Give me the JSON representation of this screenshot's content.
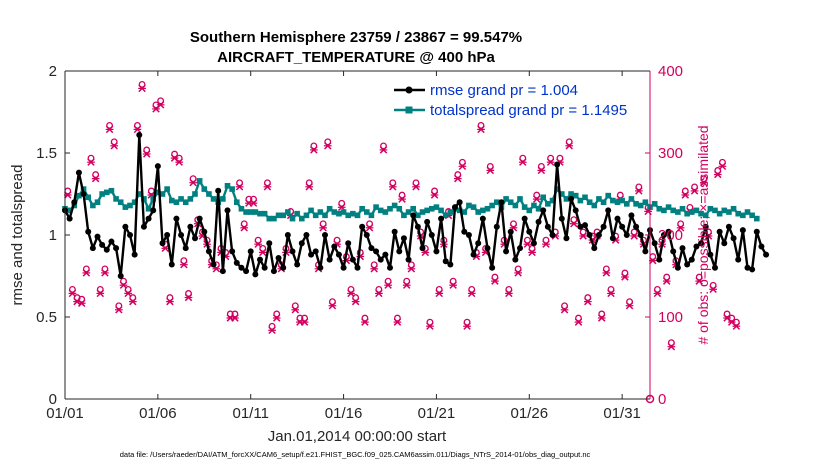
{
  "chart_data": {
    "type": "line",
    "title_line1": "Southern Hemisphere 23759 / 23867 = 99.547%",
    "title_line2": "AIRCRAFT_TEMPERATURE @ 400 hPa",
    "xlabel": "Jan.01,2014 00:00:00 start",
    "ylabel_left": "rmse and totalspread",
    "ylabel_right": "# of obs: o=possible; ×=assimilated",
    "x_ticks": [
      {
        "day": 1,
        "label": "01/01"
      },
      {
        "day": 6,
        "label": "01/06"
      },
      {
        "day": 11,
        "label": "01/11"
      },
      {
        "day": 16,
        "label": "01/16"
      },
      {
        "day": 21,
        "label": "01/21"
      },
      {
        "day": 26,
        "label": "01/26"
      },
      {
        "day": 31,
        "label": "01/31"
      }
    ],
    "xlim": [
      1,
      32.5
    ],
    "ylim_left": [
      0,
      2
    ],
    "yticks_left": [
      "0",
      "0.5",
      "1",
      "1.5",
      "2"
    ],
    "ylim_right": [
      0,
      400
    ],
    "yticks_right": [
      "0",
      "100",
      "200",
      "300",
      "400"
    ],
    "x_step_days": 0.25,
    "x_start_day": 1.0,
    "series": [
      {
        "name": "rmse",
        "legend": "rmse grand pr = 1.004",
        "color": "#000000",
        "marker": "filled-circle",
        "values": [
          1.15,
          1.1,
          1.2,
          1.38,
          1.25,
          1.02,
          0.92,
          0.99,
          0.94,
          0.91,
          0.96,
          0.92,
          0.75,
          1.05,
          1.0,
          0.88,
          1.61,
          1.05,
          1.1,
          1.15,
          1.42,
          0.95,
          1.0,
          0.82,
          1.1,
          1.0,
          0.92,
          1.05,
          0.98,
          1.1,
          1.02,
          0.9,
          0.82,
          1.27,
          0.78,
          1.15,
          0.9,
          0.83,
          0.8,
          0.78,
          0.9,
          0.76,
          0.85,
          0.8,
          0.95,
          0.78,
          0.86,
          0.8,
          1.0,
          0.9,
          0.82,
          0.95,
          1.0,
          0.88,
          0.9,
          0.8,
          1.0,
          0.85,
          0.93,
          0.88,
          0.8,
          0.95,
          0.85,
          0.8,
          1.05,
          1.0,
          0.92,
          0.9,
          0.85,
          0.88,
          0.8,
          1.02,
          0.9,
          0.98,
          0.85,
          1.12,
          1.05,
          0.92,
          1.08,
          1.0,
          0.9,
          1.1,
          0.84,
          0.82,
          1.17,
          1.2,
          1.02,
          1.0,
          0.88,
          0.95,
          1.1,
          0.92,
          0.8,
          1.05,
          1.2,
          0.9,
          1.02,
          0.85,
          0.92,
          1.1,
          1.02,
          0.95,
          1.08,
          1.15,
          1.05,
          1.0,
          1.43,
          1.1,
          0.98,
          1.22,
          1.15,
          1.05,
          1.06,
          1.0,
          0.92,
          1.0,
          1.05,
          1.15,
          0.98,
          1.1,
          1.05,
          1.0,
          1.12,
          1.05,
          1.0,
          0.9,
          1.03,
          0.95,
          0.85,
          1.0,
          1.02,
          0.9,
          0.8,
          0.92,
          0.82,
          0.85,
          0.93,
          0.95,
          1.05,
          0.88,
          0.8,
          1.02,
          0.95,
          1.05,
          0.98,
          0.85,
          1.03,
          0.8,
          0.79,
          1.02,
          0.93,
          0.88
        ]
      },
      {
        "name": "totalspread",
        "legend": "totalspread grand pr = 1.1495",
        "color": "#008080",
        "marker": "filled-square",
        "values": [
          1.16,
          1.15,
          1.18,
          1.24,
          1.28,
          1.23,
          1.18,
          1.2,
          1.25,
          1.26,
          1.27,
          1.22,
          1.2,
          1.17,
          1.18,
          1.2,
          1.25,
          1.22,
          1.16,
          1.22,
          1.26,
          1.25,
          1.28,
          1.21,
          1.2,
          1.22,
          1.2,
          1.22,
          1.25,
          1.33,
          1.28,
          1.25,
          1.22,
          1.2,
          1.22,
          1.3,
          1.28,
          1.2,
          1.16,
          1.14,
          1.14,
          1.14,
          1.13,
          1.13,
          1.1,
          1.1,
          1.12,
          1.12,
          1.14,
          1.1,
          1.13,
          1.1,
          1.12,
          1.15,
          1.12,
          1.14,
          1.12,
          1.16,
          1.14,
          1.13,
          1.14,
          1.12,
          1.13,
          1.12,
          1.16,
          1.14,
          1.12,
          1.17,
          1.15,
          1.14,
          1.16,
          1.18,
          1.16,
          1.12,
          1.14,
          1.16,
          1.12,
          1.14,
          1.15,
          1.16,
          1.17,
          1.15,
          1.12,
          1.14,
          1.16,
          1.15,
          1.14,
          1.18,
          1.17,
          1.14,
          1.15,
          1.16,
          1.18,
          1.2,
          1.17,
          1.22,
          1.2,
          1.18,
          1.22,
          1.17,
          1.15,
          1.18,
          1.16,
          1.23,
          1.19,
          1.21,
          1.28,
          1.25,
          1.22,
          1.25,
          1.24,
          1.21,
          1.23,
          1.2,
          1.18,
          1.22,
          1.2,
          1.24,
          1.21,
          1.2,
          1.21,
          1.19,
          1.22,
          1.19,
          1.18,
          1.2,
          1.17,
          1.19,
          1.16,
          1.15,
          1.17,
          1.15,
          1.14,
          1.16,
          1.13,
          1.14,
          1.15,
          1.13,
          1.12,
          1.16,
          1.15,
          1.13,
          1.15,
          1.14,
          1.16,
          1.13,
          1.12,
          1.14,
          1.12,
          1.1
        ]
      }
    ],
    "obs_possible": {
      "color": "#d40060",
      "marker": "circle",
      "values": [
        250,
        130,
        120,
        118,
        155,
        290,
        270,
        130,
        155,
        330,
        310,
        110,
        140,
        130,
        120,
        330,
        380,
        300,
        250,
        355,
        360,
        185,
        120,
        295,
        290,
        165,
        125,
        265,
        215,
        200,
        190,
        165,
        160,
        180,
        175,
        100,
        100,
        260,
        210,
        240,
        240,
        190,
        180,
        260,
        85,
        100,
        160,
        180,
        225,
        110,
        95,
        95,
        260,
        305,
        160,
        210,
        310,
        115,
        190,
        235,
        170,
        130,
        120,
        175,
        95,
        210,
        160,
        130,
        305,
        140,
        260,
        95,
        245,
        140,
        160,
        260,
        200,
        180,
        90,
        250,
        130,
        190,
        225,
        140,
        270,
        285,
        90,
        130,
        175,
        330,
        180,
        280,
        145,
        375,
        190,
        130,
        210,
        155,
        290,
        190,
        180,
        245,
        280,
        190,
        290,
        200,
        290,
        110,
        310,
        215,
        95,
        200,
        120,
        195,
        200,
        100,
        155,
        130,
        195,
        245,
        150,
        115,
        200,
        255,
        190,
        230,
        170,
        130,
        190,
        145,
        65,
        165,
        210,
        250,
        230,
        255,
        145,
        265,
        200,
        135,
        275,
        285,
        100,
        95,
        90
      ]
    },
    "obs_assimilated": {
      "color": "#d40060",
      "marker": "x",
      "values": [
        250,
        130,
        120,
        118,
        155,
        290,
        270,
        130,
        155,
        330,
        310,
        110,
        140,
        130,
        120,
        330,
        380,
        300,
        250,
        355,
        360,
        185,
        120,
        295,
        290,
        165,
        125,
        265,
        215,
        200,
        190,
        165,
        160,
        180,
        175,
        100,
        100,
        260,
        210,
        240,
        240,
        190,
        180,
        260,
        85,
        100,
        160,
        180,
        225,
        110,
        95,
        95,
        260,
        305,
        160,
        210,
        310,
        115,
        190,
        235,
        170,
        130,
        120,
        175,
        95,
        210,
        160,
        130,
        305,
        140,
        260,
        95,
        245,
        140,
        160,
        260,
        200,
        180,
        90,
        250,
        130,
        190,
        225,
        140,
        270,
        285,
        90,
        130,
        175,
        330,
        180,
        280,
        145,
        375,
        190,
        130,
        210,
        155,
        290,
        190,
        180,
        245,
        280,
        190,
        290,
        200,
        290,
        110,
        310,
        215,
        95,
        200,
        120,
        195,
        200,
        100,
        155,
        130,
        195,
        245,
        150,
        115,
        200,
        255,
        190,
        230,
        170,
        130,
        190,
        145,
        65,
        165,
        210,
        250,
        230,
        255,
        145,
        265,
        200,
        135,
        275,
        285,
        100,
        95,
        90
      ]
    },
    "footer": "data file: /Users/raeder/DAI/ATM_forcXX/CAM6_setup/f.e21.FHIST_BGC.f09_025.CAM6assim.011/Diags_NTrS_2014-01/obs_diag_output.nc"
  }
}
